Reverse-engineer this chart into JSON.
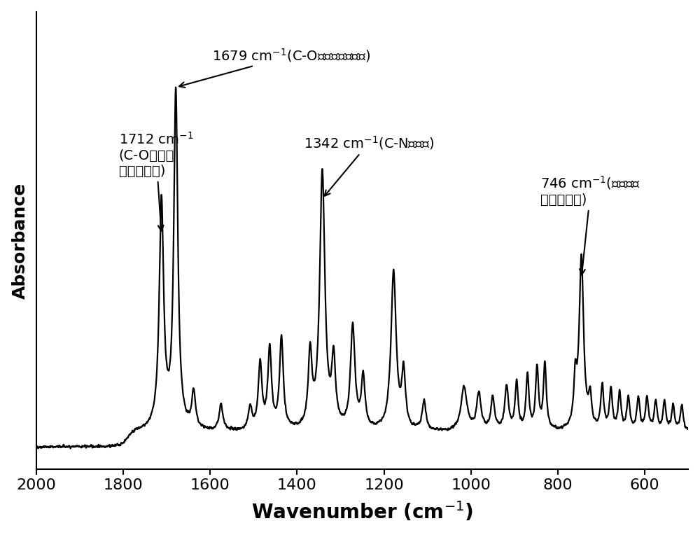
{
  "xlim": [
    2000,
    500
  ],
  "ylim": [
    0,
    1.15
  ],
  "ylabel": "Absorbance",
  "xlabel_display": "Wavenumber (cm$^{-1}$)",
  "xticks": [
    2000,
    1800,
    1600,
    1400,
    1200,
    1000,
    800,
    600
  ],
  "background_color": "#ffffff",
  "line_color": "#000000",
  "figsize": [
    10.0,
    7.64
  ],
  "dpi": 100
}
